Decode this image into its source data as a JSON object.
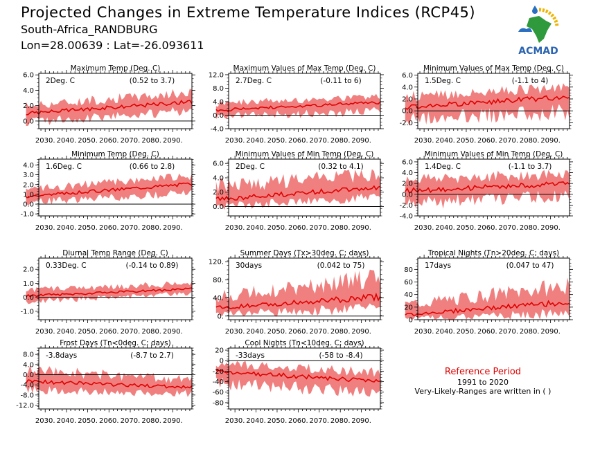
{
  "header": {
    "title": "Projected Changes in Extreme Temperature Indices (RCP45)",
    "location": "South-Africa_RANDBURG",
    "coords": "Lon=28.00639 : Lat=-26.093611"
  },
  "reference": {
    "title": "Reference Period",
    "period": "1991 to 2020",
    "note": "Very-Likely-Ranges are written in ( )"
  },
  "logo": {
    "text": "ACMAD"
  },
  "colors": {
    "band": "#f08080",
    "line": "#e00000",
    "zero": "#000000"
  },
  "xticks": [
    "2030.",
    "2040.",
    "2050.",
    "2060.",
    "2070.",
    "2080.",
    "2090."
  ],
  "chart_data": [
    {
      "type": "area",
      "title": "Maximum Temp (Deg. C)",
      "mean_label": "2Deg. C",
      "range_label": "(0.52 to 3.7)",
      "x": [
        2021,
        2099
      ],
      "trend": [
        1.0,
        2.5
      ],
      "band": [
        [
          -0.4,
          2.3
        ],
        [
          1.1,
          4.0
        ]
      ],
      "ylim": [
        -1,
        6.2
      ],
      "yticks": [
        "6.0",
        "4.0",
        "2.0",
        "0.0"
      ],
      "ytick_values": [
        6,
        4,
        2,
        0
      ]
    },
    {
      "type": "area",
      "title": "Maximum Values of Max Temp (Deg. C)",
      "mean_label": "2.7Deg. C",
      "range_label": "(-0.11 to 6)",
      "x": [
        2021,
        2099
      ],
      "trend": [
        1.5,
        3.8
      ],
      "band": [
        [
          -1.0,
          4.0
        ],
        [
          0.5,
          6.0
        ]
      ],
      "ylim": [
        -4,
        12.4
      ],
      "yticks": [
        "12.0",
        "8.0",
        "4.0",
        "0.0",
        "-4.0"
      ],
      "ytick_values": [
        12,
        8,
        4,
        0,
        -4
      ]
    },
    {
      "type": "area",
      "title": "Minimum Values of Max Temp (Deg. C)",
      "mean_label": "1.5Deg. C",
      "range_label": "(-1.1 to 4)",
      "x": [
        2021,
        2099
      ],
      "trend": [
        0.6,
        2.4
      ],
      "band": [
        [
          -2.0,
          2.8
        ],
        [
          -0.8,
          4.3
        ]
      ],
      "ylim": [
        -3,
        6.3
      ],
      "yticks": [
        "6.0",
        "4.0",
        "2.0",
        "0.0",
        "-2.0"
      ],
      "ytick_values": [
        6,
        4,
        2,
        0,
        -2
      ]
    },
    {
      "type": "area",
      "title": "Minimum Temp (Deg. C)",
      "mean_label": "1.6Deg. C",
      "range_label": "(0.66 to 2.8)",
      "x": [
        2021,
        2099
      ],
      "trend": [
        0.8,
        2.1
      ],
      "band": [
        [
          0.0,
          1.7
        ],
        [
          1.0,
          3.1
        ]
      ],
      "ylim": [
        -1.2,
        4.6
      ],
      "yticks": [
        "4.0",
        "3.0",
        "2.0",
        "1.0",
        "0.0",
        "-1.0"
      ],
      "ytick_values": [
        4,
        3,
        2,
        1,
        0,
        -1
      ]
    },
    {
      "type": "area",
      "title": "Minimum Values of Min Temp (Deg. C)",
      "mean_label": "2Deg. C",
      "range_label": "(0.32 to 4.1)",
      "x": [
        2021,
        2099
      ],
      "trend": [
        1.0,
        2.7
      ],
      "band": [
        [
          -0.3,
          3.3
        ],
        [
          1.0,
          5.0
        ]
      ],
      "ylim": [
        -1.3,
        6.6
      ],
      "yticks": [
        "6.0",
        "4.0",
        "2.0",
        "0.0"
      ],
      "ytick_values": [
        6,
        4,
        2,
        0
      ]
    },
    {
      "type": "area",
      "title": "Minimum Values of Min Temp (Deg. C)",
      "mean_label": "1.4Deg. C",
      "range_label": "(-1.1 to 3.7)",
      "x": [
        2021,
        2099
      ],
      "trend": [
        0.6,
        2.0
      ],
      "band": [
        [
          -2.4,
          3.3
        ],
        [
          -0.8,
          4.2
        ]
      ],
      "ylim": [
        -4,
        6.5
      ],
      "yticks": [
        "6.0",
        "4.0",
        "2.0",
        "0.0",
        "-2.0",
        "-4.0"
      ],
      "ytick_values": [
        6,
        4,
        2,
        0,
        -2,
        -4
      ]
    },
    {
      "type": "area",
      "title": "Diurnal Temp Range (Deg. C)",
      "mean_label": "0.33Deg. C",
      "range_label": "(-0.14 to 0.89)",
      "x": [
        2021,
        2099
      ],
      "trend": [
        0.1,
        0.6
      ],
      "band": [
        [
          -0.4,
          0.6
        ],
        [
          0.2,
          1.1
        ]
      ],
      "ylim": [
        -1.6,
        2.8
      ],
      "yticks": [
        "2.0",
        "1.0",
        "0.0",
        "-1.0"
      ],
      "ytick_values": [
        2,
        1,
        0,
        -1
      ]
    },
    {
      "type": "area",
      "title": "Summer Days (Tx>30deg. C; days)",
      "mean_label": "30days",
      "range_label": "(0.042 to 75)",
      "x": [
        2021,
        2099
      ],
      "trend": [
        18,
        42
      ],
      "band": [
        [
          0,
          50
        ],
        [
          12,
          95
        ]
      ],
      "ylim": [
        -8,
        128
      ],
      "yticks": [
        "120.",
        "80.",
        "40.",
        "0."
      ],
      "ytick_values": [
        120,
        80,
        40,
        0
      ]
    },
    {
      "type": "area",
      "title": "Tropical Nights (Tn>20deg. C; days)",
      "mean_label": "17days",
      "range_label": "(0.047 to 47)",
      "x": [
        2021,
        2099
      ],
      "trend": [
        8,
        28
      ],
      "band": [
        [
          0,
          28
        ],
        [
          5,
          60
        ]
      ],
      "ylim": [
        0,
        98
      ],
      "yticks": [
        "80",
        "60",
        "40",
        "20",
        "0"
      ],
      "ytick_values": [
        80,
        60,
        40,
        20,
        0
      ]
    },
    {
      "type": "area",
      "title": "Frost Days (Tn<0deg. C; days)",
      "mean_label": "-3.8days",
      "range_label": "(-8.7 to 2.7)",
      "x": [
        2021,
        2099
      ],
      "trend": [
        -2.5,
        -5.0
      ],
      "band": [
        [
          -6.5,
          2.8
        ],
        [
          -8.2,
          -1.2
        ]
      ],
      "ylim": [
        -13.5,
        10.5
      ],
      "yticks": [
        "8.0",
        "4.0",
        "0.0",
        "-4.0",
        "-8.0",
        "-12.0"
      ],
      "ytick_values": [
        8,
        4,
        0,
        -4,
        -8,
        -12
      ]
    },
    {
      "type": "area",
      "title": "Cool Nights (Tn<10deg. C; days)",
      "mean_label": "-33days",
      "range_label": "(-58 to -8.4)",
      "x": [
        2021,
        2099
      ],
      "trend": [
        -20,
        -40
      ],
      "band": [
        [
          -50,
          -2
        ],
        [
          -65,
          -18
        ]
      ],
      "ylim": [
        -92,
        24
      ],
      "yticks": [
        "20",
        "0",
        "-20",
        "-40",
        "-60",
        "-80"
      ],
      "ytick_values": [
        20,
        0,
        -20,
        -40,
        -60,
        -80
      ]
    }
  ]
}
